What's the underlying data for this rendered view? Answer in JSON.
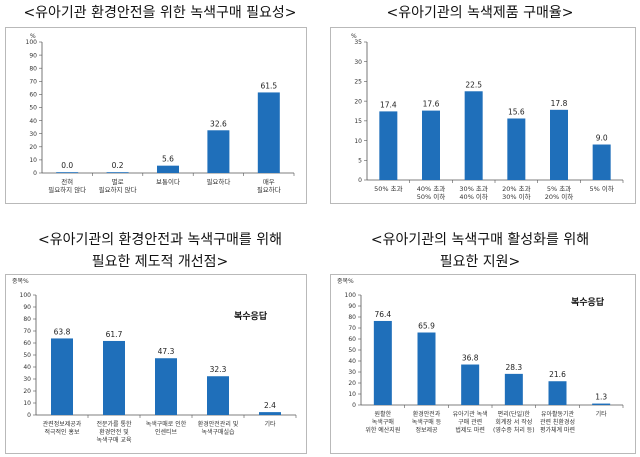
{
  "chart_data": [
    {
      "type": "bar",
      "title": "<유아기관 환경안전을 위한 녹색구매 필요성>",
      "ylabel": "%",
      "ylim": [
        0,
        100
      ],
      "yticks": [
        0,
        10,
        20,
        30,
        40,
        50,
        60,
        70,
        80,
        90,
        100
      ],
      "categories": [
        [
          "전혀",
          "필요하지 않다"
        ],
        [
          "별로",
          "필요하지 않다"
        ],
        [
          "보통이다"
        ],
        [
          "필요하다"
        ],
        [
          "매우",
          "필요하다"
        ]
      ],
      "values": [
        0.0,
        0.2,
        5.6,
        32.6,
        61.5
      ],
      "labels": [
        "0.0",
        "0.2",
        "5.6",
        "32.6",
        "61.5"
      ],
      "color": "#1f6fba"
    },
    {
      "type": "bar",
      "title": "<유아기관의 녹색제품 구매율>",
      "ylabel": "%",
      "ylim": [
        0,
        35
      ],
      "yticks": [
        0,
        5,
        10,
        15,
        20,
        25,
        30,
        35
      ],
      "categories": [
        [
          "50% 초과"
        ],
        [
          "40% 초과",
          "50% 이하"
        ],
        [
          "30% 초과",
          "40% 이하"
        ],
        [
          "20% 초과",
          "30% 이하"
        ],
        [
          "5% 초과",
          "20% 이하"
        ],
        [
          "5% 이하"
        ]
      ],
      "values": [
        17.4,
        17.6,
        22.5,
        15.6,
        17.8,
        9.0
      ],
      "labels": [
        "17.4",
        "17.6",
        "22.5",
        "15.6",
        "17.8",
        "9.0"
      ],
      "color": "#1f6fba"
    },
    {
      "type": "bar",
      "title": [
        "<유아기관의 환경안전과 녹색구매를 위해",
        "필요한 제도적 개선점>"
      ],
      "ylabel": "중복%",
      "note": "복수응답",
      "ylim": [
        0,
        100
      ],
      "yticks": [
        0,
        10,
        20,
        30,
        40,
        50,
        60,
        70,
        80,
        90,
        100
      ],
      "categories": [
        [
          "관련정보제공과",
          "적극적인 홍보"
        ],
        [
          "전문가를 통한",
          "환경안전 및",
          "녹색구매 교육"
        ],
        [
          "녹색구매로 인한",
          "인센티브"
        ],
        [
          "환경안전관리 및",
          "녹색구매실습"
        ],
        [
          "기타"
        ]
      ],
      "values": [
        63.8,
        61.7,
        47.3,
        32.3,
        2.4
      ],
      "labels": [
        "63.8",
        "61.7",
        "47.3",
        "32.3",
        "2.4"
      ],
      "color": "#1f6fba"
    },
    {
      "type": "bar",
      "title": [
        "<유아기관의 녹색구매 활성화를 위해",
        "필요한 지원>"
      ],
      "ylabel": "중복%",
      "note": "복수응답",
      "ylim": [
        0,
        100
      ],
      "yticks": [
        0,
        10,
        20,
        30,
        40,
        50,
        60,
        70,
        80,
        90,
        100
      ],
      "categories": [
        [
          "원활한",
          "녹색구매",
          "위한 예산지원"
        ],
        [
          "환경안전과",
          "녹색구매 등",
          "정보제공"
        ],
        [
          "유아기관 녹색",
          "구매 관련",
          "법제도 마련"
        ],
        [
          "편리(단일)한",
          "회계장 서 작성",
          "(영수증 처리 등)"
        ],
        [
          "유아활동기관",
          "관련 친환경성",
          "평가체계 마련"
        ],
        [
          "기타"
        ]
      ],
      "values": [
        76.4,
        65.9,
        36.8,
        28.3,
        21.6,
        1.3
      ],
      "labels": [
        "76.4",
        "65.9",
        "36.8",
        "28.3",
        "21.6",
        "1.3"
      ],
      "color": "#1f6fba"
    }
  ]
}
